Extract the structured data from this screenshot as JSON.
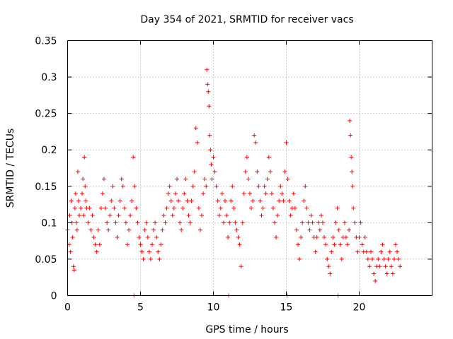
{
  "chart_data": {
    "type": "scatter",
    "title": "Day 354 of 2021, SRMTID for receiver vacs",
    "xlabel": "GPS time / hours",
    "ylabel": "SRMTID / TECUs",
    "xlim": [
      0,
      25
    ],
    "ylim": [
      0,
      0.35
    ],
    "xticks": [
      0,
      5,
      10,
      15,
      20
    ],
    "xtick_labels": [
      "0",
      "5",
      "10",
      "15",
      "20"
    ],
    "yticks": [
      0,
      0.05,
      0.1,
      0.15,
      0.2,
      0.25,
      0.3,
      0.35
    ],
    "ytick_labels": [
      "0",
      "0.05",
      "0.1",
      "0.15",
      "0.2",
      "0.25",
      "0.3",
      "0.35"
    ],
    "grid": true,
    "marker": "+",
    "series": [
      {
        "name": "SRMTID",
        "color": "#ff0000",
        "points": [
          [
            0.0,
            0.09
          ],
          [
            0.1,
            0.07
          ],
          [
            0.15,
            0.11
          ],
          [
            0.2,
            0.06
          ],
          [
            0.25,
            0.13
          ],
          [
            0.3,
            0.1
          ],
          [
            0.35,
            0.08
          ],
          [
            0.4,
            0.04
          ],
          [
            0.45,
            0.035
          ],
          [
            0.5,
            0.12
          ],
          [
            0.55,
            0.14
          ],
          [
            0.6,
            0.1
          ],
          [
            0.65,
            0.09
          ],
          [
            0.7,
            0.17
          ],
          [
            0.75,
            0.13
          ],
          [
            0.8,
            0.11
          ],
          [
            0.9,
            0.12
          ],
          [
            1.0,
            0.14
          ],
          [
            1.05,
            0.16
          ],
          [
            1.1,
            0.11
          ],
          [
            1.15,
            0.19
          ],
          [
            1.2,
            0.15
          ],
          [
            1.25,
            0.13
          ],
          [
            1.3,
            0.12
          ],
          [
            1.4,
            0.1
          ],
          [
            1.5,
            0.12
          ],
          [
            1.6,
            0.09
          ],
          [
            1.7,
            0.11
          ],
          [
            1.8,
            0.08
          ],
          [
            1.9,
            0.07
          ],
          [
            2.0,
            0.06
          ],
          [
            2.1,
            0.09
          ],
          [
            2.2,
            0.07
          ],
          [
            2.3,
            0.12
          ],
          [
            2.4,
            0.14
          ],
          [
            2.5,
            0.16
          ],
          [
            2.6,
            0.12
          ],
          [
            2.7,
            0.1
          ],
          [
            2.8,
            0.09
          ],
          [
            2.9,
            0.11
          ],
          [
            3.0,
            0.13
          ],
          [
            3.1,
            0.15
          ],
          [
            3.2,
            0.12
          ],
          [
            3.3,
            0.1
          ],
          [
            3.4,
            0.08
          ],
          [
            3.5,
            0.11
          ],
          [
            3.6,
            0.13
          ],
          [
            3.7,
            0.16
          ],
          [
            3.8,
            0.15
          ],
          [
            3.9,
            0.12
          ],
          [
            4.0,
            0.1
          ],
          [
            4.1,
            0.07
          ],
          [
            4.2,
            0.09
          ],
          [
            4.3,
            0.11
          ],
          [
            4.4,
            0.13
          ],
          [
            4.5,
            0.19
          ],
          [
            4.55,
            0.0
          ],
          [
            4.6,
            0.15
          ],
          [
            4.7,
            0.12
          ],
          [
            4.8,
            0.1
          ],
          [
            4.9,
            0.08
          ],
          [
            5.0,
            0.07
          ],
          [
            5.1,
            0.06
          ],
          [
            5.2,
            0.05
          ],
          [
            5.3,
            0.09
          ],
          [
            5.4,
            0.1
          ],
          [
            5.5,
            0.08
          ],
          [
            5.6,
            0.06
          ],
          [
            5.7,
            0.05
          ],
          [
            5.8,
            0.07
          ],
          [
            5.9,
            0.09
          ],
          [
            6.0,
            0.1
          ],
          [
            6.1,
            0.08
          ],
          [
            6.2,
            0.06
          ],
          [
            6.3,
            0.05
          ],
          [
            6.4,
            0.07
          ],
          [
            6.5,
            0.09
          ],
          [
            6.6,
            0.11
          ],
          [
            6.7,
            0.1
          ],
          [
            6.8,
            0.12
          ],
          [
            6.9,
            0.14
          ],
          [
            7.0,
            0.15
          ],
          [
            7.1,
            0.13
          ],
          [
            7.2,
            0.11
          ],
          [
            7.3,
            0.12
          ],
          [
            7.4,
            0.14
          ],
          [
            7.5,
            0.16
          ],
          [
            7.6,
            0.13
          ],
          [
            7.7,
            0.1
          ],
          [
            7.8,
            0.09
          ],
          [
            7.9,
            0.12
          ],
          [
            8.0,
            0.14
          ],
          [
            8.1,
            0.16
          ],
          [
            8.2,
            0.13
          ],
          [
            8.3,
            0.11
          ],
          [
            8.4,
            0.1
          ],
          [
            8.5,
            0.13
          ],
          [
            8.6,
            0.15
          ],
          [
            8.7,
            0.17
          ],
          [
            8.8,
            0.23
          ],
          [
            8.9,
            0.21
          ],
          [
            9.0,
            0.12
          ],
          [
            9.1,
            0.09
          ],
          [
            9.2,
            0.11
          ],
          [
            9.3,
            0.14
          ],
          [
            9.4,
            0.16
          ],
          [
            9.5,
            0.15
          ],
          [
            9.55,
            0.31
          ],
          [
            9.6,
            0.29
          ],
          [
            9.65,
            0.28
          ],
          [
            9.7,
            0.26
          ],
          [
            9.75,
            0.22
          ],
          [
            9.8,
            0.2
          ],
          [
            9.85,
            0.18
          ],
          [
            9.9,
            0.16
          ],
          [
            10.0,
            0.19
          ],
          [
            10.1,
            0.17
          ],
          [
            10.2,
            0.15
          ],
          [
            10.3,
            0.13
          ],
          [
            10.4,
            0.11
          ],
          [
            10.5,
            0.12
          ],
          [
            10.6,
            0.14
          ],
          [
            10.7,
            0.1
          ],
          [
            10.8,
            0.13
          ],
          [
            10.9,
            0.11
          ],
          [
            11.0,
            0.08
          ],
          [
            11.05,
            0.0
          ],
          [
            11.1,
            0.1
          ],
          [
            11.2,
            0.13
          ],
          [
            11.3,
            0.15
          ],
          [
            11.4,
            0.12
          ],
          [
            11.5,
            0.1
          ],
          [
            11.6,
            0.09
          ],
          [
            11.7,
            0.08
          ],
          [
            11.8,
            0.07
          ],
          [
            11.9,
            0.04
          ],
          [
            12.0,
            0.1
          ],
          [
            12.1,
            0.14
          ],
          [
            12.2,
            0.17
          ],
          [
            12.3,
            0.19
          ],
          [
            12.4,
            0.16
          ],
          [
            12.5,
            0.14
          ],
          [
            12.6,
            0.12
          ],
          [
            12.7,
            0.13
          ],
          [
            12.8,
            0.22
          ],
          [
            12.9,
            0.21
          ],
          [
            13.0,
            0.17
          ],
          [
            13.1,
            0.15
          ],
          [
            13.2,
            0.13
          ],
          [
            13.3,
            0.11
          ],
          [
            13.4,
            0.12
          ],
          [
            13.5,
            0.15
          ],
          [
            13.6,
            0.14
          ],
          [
            13.7,
            0.16
          ],
          [
            13.8,
            0.19
          ],
          [
            13.9,
            0.17
          ],
          [
            14.0,
            0.14
          ],
          [
            14.1,
            0.12
          ],
          [
            14.2,
            0.1
          ],
          [
            14.3,
            0.08
          ],
          [
            14.4,
            0.11
          ],
          [
            14.5,
            0.13
          ],
          [
            14.6,
            0.15
          ],
          [
            14.7,
            0.14
          ],
          [
            14.8,
            0.13
          ],
          [
            14.9,
            0.17
          ],
          [
            15.0,
            0.21
          ],
          [
            15.05,
            0.0
          ],
          [
            15.1,
            0.16
          ],
          [
            15.2,
            0.13
          ],
          [
            15.3,
            0.11
          ],
          [
            15.4,
            0.12
          ],
          [
            15.5,
            0.14
          ],
          [
            15.6,
            0.12
          ],
          [
            15.7,
            0.09
          ],
          [
            15.8,
            0.07
          ],
          [
            15.9,
            0.05
          ],
          [
            16.0,
            0.08
          ],
          [
            16.1,
            0.1
          ],
          [
            16.2,
            0.13
          ],
          [
            16.3,
            0.15
          ],
          [
            16.4,
            0.12
          ],
          [
            16.5,
            0.1
          ],
          [
            16.6,
            0.09
          ],
          [
            16.7,
            0.11
          ],
          [
            16.8,
            0.1
          ],
          [
            16.9,
            0.08
          ],
          [
            17.0,
            0.06
          ],
          [
            17.1,
            0.08
          ],
          [
            17.2,
            0.1
          ],
          [
            17.3,
            0.09
          ],
          [
            17.4,
            0.11
          ],
          [
            17.5,
            0.1
          ],
          [
            17.6,
            0.08
          ],
          [
            17.7,
            0.07
          ],
          [
            17.8,
            0.05
          ],
          [
            17.9,
            0.04
          ],
          [
            18.0,
            0.03
          ],
          [
            18.1,
            0.06
          ],
          [
            18.2,
            0.08
          ],
          [
            18.3,
            0.07
          ],
          [
            18.4,
            0.1
          ],
          [
            18.5,
            0.12
          ],
          [
            18.55,
            0.0
          ],
          [
            18.6,
            0.09
          ],
          [
            18.7,
            0.07
          ],
          [
            18.8,
            0.05
          ],
          [
            18.9,
            0.08
          ],
          [
            19.0,
            0.1
          ],
          [
            19.1,
            0.08
          ],
          [
            19.2,
            0.07
          ],
          [
            19.3,
            0.09
          ],
          [
            19.35,
            0.24
          ],
          [
            19.4,
            0.22
          ],
          [
            19.45,
            0.19
          ],
          [
            19.5,
            0.17
          ],
          [
            19.55,
            0.15
          ],
          [
            19.6,
            0.12
          ],
          [
            19.7,
            0.1
          ],
          [
            19.8,
            0.08
          ],
          [
            19.9,
            0.06
          ],
          [
            20.0,
            0.08
          ],
          [
            20.1,
            0.1
          ],
          [
            20.2,
            0.07
          ],
          [
            20.3,
            0.06
          ],
          [
            20.4,
            0.08
          ],
          [
            20.5,
            0.06
          ],
          [
            20.6,
            0.05
          ],
          [
            20.7,
            0.04
          ],
          [
            20.8,
            0.06
          ],
          [
            20.9,
            0.05
          ],
          [
            21.0,
            0.03
          ],
          [
            21.1,
            0.02
          ],
          [
            21.2,
            0.04
          ],
          [
            21.3,
            0.05
          ],
          [
            21.4,
            0.04
          ],
          [
            21.5,
            0.06
          ],
          [
            21.6,
            0.07
          ],
          [
            21.7,
            0.05
          ],
          [
            21.8,
            0.04
          ],
          [
            21.9,
            0.03
          ],
          [
            22.0,
            0.05
          ],
          [
            22.1,
            0.06
          ],
          [
            22.2,
            0.04
          ],
          [
            22.3,
            0.03
          ],
          [
            22.4,
            0.05
          ],
          [
            22.5,
            0.07
          ],
          [
            22.6,
            0.06
          ],
          [
            22.7,
            0.05
          ],
          [
            22.8,
            0.04
          ]
        ]
      }
    ]
  }
}
